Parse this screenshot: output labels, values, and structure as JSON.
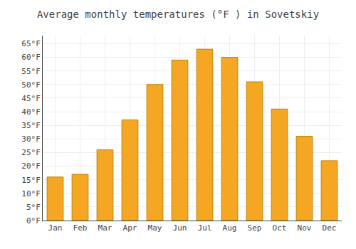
{
  "chart_data": {
    "type": "bar",
    "title": "Average monthly temperatures (°F ) in Sovetskiy",
    "categories": [
      "Jan",
      "Feb",
      "Mar",
      "Apr",
      "May",
      "Jun",
      "Jul",
      "Aug",
      "Sep",
      "Oct",
      "Nov",
      "Dec"
    ],
    "values": [
      16,
      17,
      26,
      37,
      50,
      59,
      63,
      60,
      51,
      41,
      31,
      22
    ],
    "color": "#F5A623",
    "ylim": [
      0,
      68
    ],
    "yticks": [
      {
        "value": 0,
        "label": "0°F"
      },
      {
        "value": 5,
        "label": "5°F"
      },
      {
        "value": 10,
        "label": "10°F"
      },
      {
        "value": 15,
        "label": "15°F"
      },
      {
        "value": 20,
        "label": "20°F"
      },
      {
        "value": 25,
        "label": "25°F"
      },
      {
        "value": 30,
        "label": "30°F"
      },
      {
        "value": 35,
        "label": "35°F"
      },
      {
        "value": 40,
        "label": "40°F"
      },
      {
        "value": 45,
        "label": "45°F"
      },
      {
        "value": 50,
        "label": "50°F"
      },
      {
        "value": 55,
        "label": "55°F"
      },
      {
        "value": 60,
        "label": "60°F"
      },
      {
        "value": 65,
        "label": "65°F"
      }
    ],
    "grid": true
  }
}
